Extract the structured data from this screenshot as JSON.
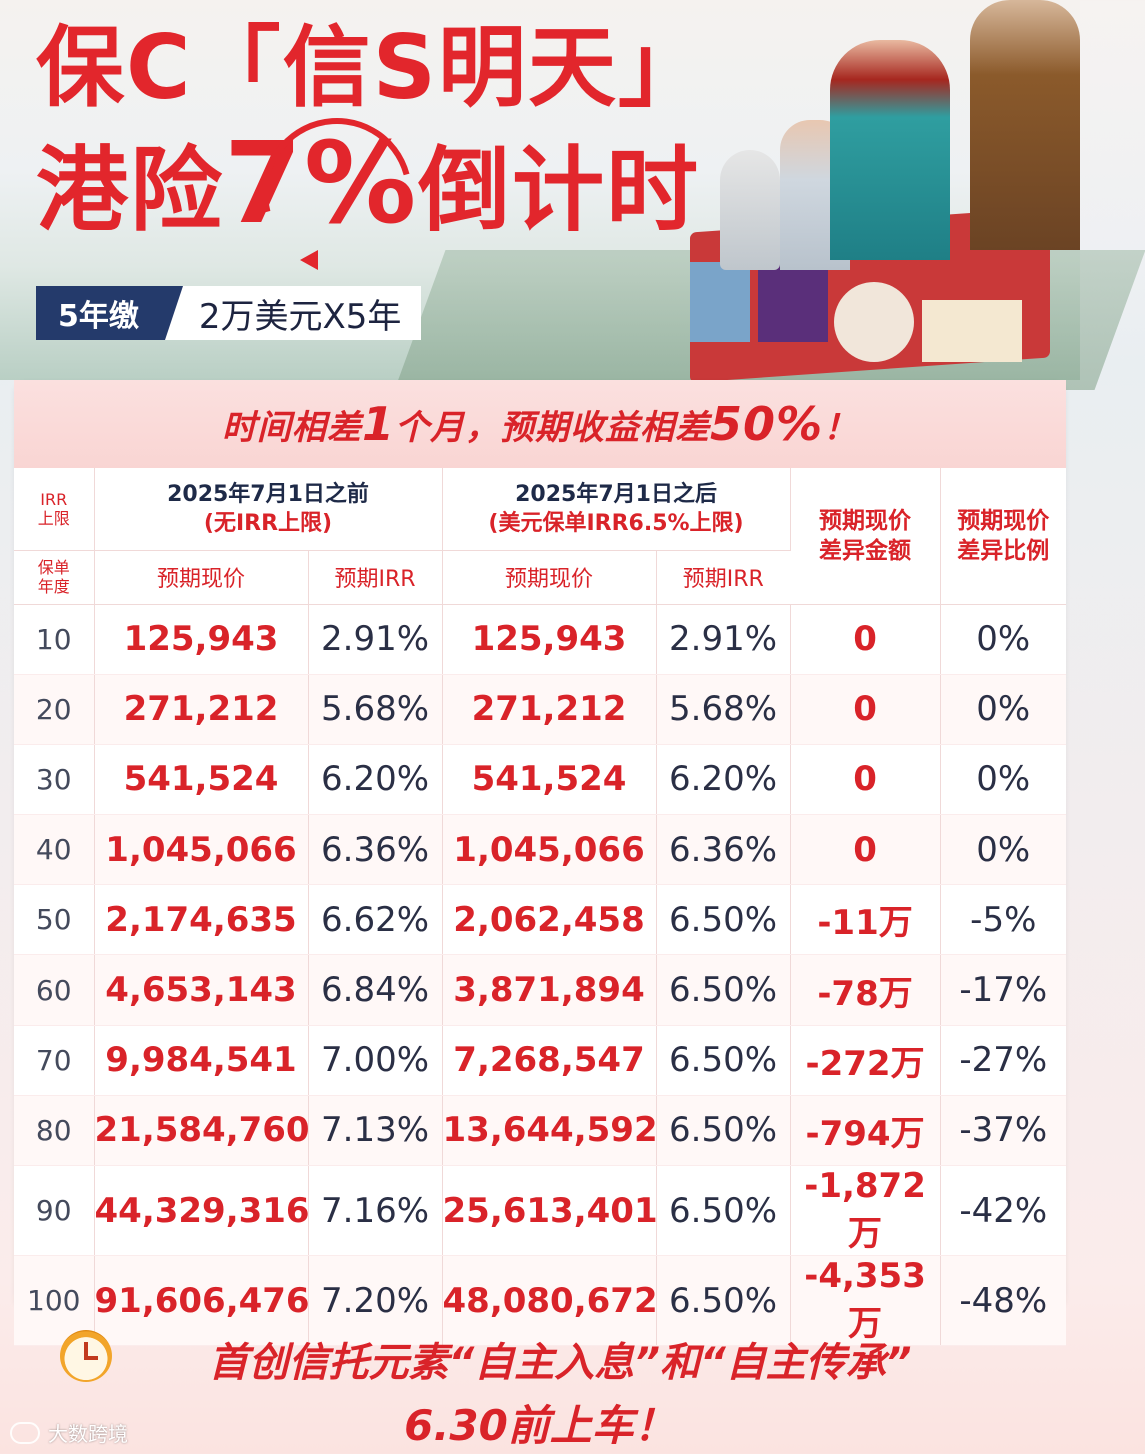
{
  "hero": {
    "headline_line1": "保C「信S明天」",
    "headline_line2_pre": "港险",
    "headline_line2_big": "7%",
    "headline_line2_post": "倒计时",
    "tag_dark": "5年缴",
    "tag_light": "2万美元X5年"
  },
  "banner": {
    "part1": "时间相差",
    "num1": "1",
    "part2": "个月，预期收益相差",
    "num2": "50%",
    "part3": "！"
  },
  "table": {
    "irr_limit_label": "IRR\n上限",
    "policy_year_label": "保单\n年度",
    "before_title": "2025年7月1日之前",
    "before_sub": "(无IRR上限)",
    "after_title": "2025年7月1日之后",
    "after_sub": "(美元保单IRR6.5%上限)",
    "col_value": "预期现价",
    "col_irr": "预期IRR",
    "diff_amount": "预期现价\n差异金额",
    "diff_ratio": "预期现价\n差异比例",
    "rows": [
      {
        "year": "10",
        "before_value": "125,943",
        "before_irr": "2.91%",
        "after_value": "125,943",
        "after_irr": "2.91%",
        "diff": "0",
        "pct": "0%"
      },
      {
        "year": "20",
        "before_value": "271,212",
        "before_irr": "5.68%",
        "after_value": "271,212",
        "after_irr": "5.68%",
        "diff": "0",
        "pct": "0%"
      },
      {
        "year": "30",
        "before_value": "541,524",
        "before_irr": "6.20%",
        "after_value": "541,524",
        "after_irr": "6.20%",
        "diff": "0",
        "pct": "0%"
      },
      {
        "year": "40",
        "before_value": "1,045,066",
        "before_irr": "6.36%",
        "after_value": "1,045,066",
        "after_irr": "6.36%",
        "diff": "0",
        "pct": "0%"
      },
      {
        "year": "50",
        "before_value": "2,174,635",
        "before_irr": "6.62%",
        "after_value": "2,062,458",
        "after_irr": "6.50%",
        "diff": "-11万",
        "pct": "-5%"
      },
      {
        "year": "60",
        "before_value": "4,653,143",
        "before_irr": "6.84%",
        "after_value": "3,871,894",
        "after_irr": "6.50%",
        "diff": "-78万",
        "pct": "-17%"
      },
      {
        "year": "70",
        "before_value": "9,984,541",
        "before_irr": "7.00%",
        "after_value": "7,268,547",
        "after_irr": "6.50%",
        "diff": "-272万",
        "pct": "-27%"
      },
      {
        "year": "80",
        "before_value": "21,584,760",
        "before_irr": "7.13%",
        "after_value": "13,644,592",
        "after_irr": "6.50%",
        "diff": "-794万",
        "pct": "-37%"
      },
      {
        "year": "90",
        "before_value": "44,329,316",
        "before_irr": "7.16%",
        "after_value": "25,613,401",
        "after_irr": "6.50%",
        "diff": "-1,872万",
        "pct": "-42%"
      },
      {
        "year": "100",
        "before_value": "91,606,476",
        "before_irr": "7.20%",
        "after_value": "48,080,672",
        "after_irr": "6.50%",
        "diff": "-4,353万",
        "pct": "-48%"
      }
    ]
  },
  "footer": {
    "line1": "首创信托元素“自主入息”和“自主传承”",
    "line2": "6.30前上车！",
    "watermark": "大数跨境"
  },
  "colors": {
    "accent_red": "#d92329",
    "navy": "#243a6b",
    "banner_pink": "#fbe0df"
  }
}
